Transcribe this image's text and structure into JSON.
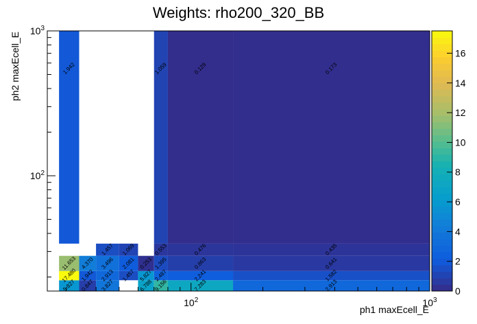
{
  "chart_data": {
    "type": "heatmap",
    "title": "Weights: rho200_320_BB",
    "xlabel": "ph1 maxEcell_E",
    "ylabel": "ph2 maxEcell_E",
    "x_scale": "log",
    "y_scale": "log",
    "xlim": [
      25,
      1000
    ],
    "ylim": [
      16,
      1000
    ],
    "x_tick_labels": [
      {
        "value": 100,
        "base": "10",
        "exp": "2"
      },
      {
        "value": 1000,
        "base": "10",
        "exp": "3"
      }
    ],
    "y_tick_labels": [
      {
        "value": 100,
        "base": "10",
        "exp": "2"
      },
      {
        "value": 1000,
        "base": "10",
        "exp": "3"
      }
    ],
    "colorbar": {
      "min": 0,
      "max": 17.5,
      "ticks": [
        "0",
        "2",
        "4",
        "6",
        "8",
        "10",
        "12",
        "14",
        "16"
      ]
    },
    "cells": [
      {
        "x": [
          28,
          34
        ],
        "y": [
          16,
          19
        ],
        "value": 5.827,
        "label": "5.827"
      },
      {
        "x": [
          34,
          40
        ],
        "y": [
          16,
          19
        ],
        "value": 0.847,
        "label": "0.847"
      },
      {
        "x": [
          40,
          50
        ],
        "y": [
          16,
          19
        ],
        "value": 3.827,
        "label": "3.827"
      },
      {
        "x": [
          60,
          70
        ],
        "y": [
          16,
          19
        ],
        "value": 6.788,
        "label": "6.788"
      },
      {
        "x": [
          70,
          80
        ],
        "y": [
          16,
          19
        ],
        "value": 9.156,
        "label": "9.156"
      },
      {
        "x": [
          80,
          150
        ],
        "y": [
          16,
          19
        ],
        "value": 7.283,
        "label": "7.283"
      },
      {
        "x": [
          150,
          1000
        ],
        "y": [
          16,
          19
        ],
        "value": 2.913,
        "label": "2.913"
      },
      {
        "x": [
          28,
          34
        ],
        "y": [
          19,
          22
        ],
        "value": 17.48,
        "label": "17.480"
      },
      {
        "x": [
          34,
          40
        ],
        "y": [
          19,
          22
        ],
        "value": 1.942,
        "label": "1.942"
      },
      {
        "x": [
          40,
          50
        ],
        "y": [
          19,
          22
        ],
        "value": 2.913,
        "label": "2.913"
      },
      {
        "x": [
          50,
          60
        ],
        "y": [
          19,
          22
        ],
        "value": 1.457,
        "label": "1.457"
      },
      {
        "x": [
          60,
          70
        ],
        "y": [
          19,
          22
        ],
        "value": 5.827,
        "label": "5.827"
      },
      {
        "x": [
          70,
          80
        ],
        "y": [
          19,
          22
        ],
        "value": 2.487,
        "label": "2.487"
      },
      {
        "x": [
          80,
          150
        ],
        "y": [
          19,
          22
        ],
        "value": 2.241,
        "label": "2.241"
      },
      {
        "x": [
          150,
          1000
        ],
        "y": [
          19,
          22
        ],
        "value": 1.582,
        "label": "1.582"
      },
      {
        "x": [
          28,
          34
        ],
        "y": [
          22,
          28
        ],
        "value": 11.653,
        "label": "11.653"
      },
      {
        "x": [
          34,
          40
        ],
        "y": [
          22,
          28
        ],
        "value": 4.37,
        "label": "4.370"
      },
      {
        "x": [
          40,
          50
        ],
        "y": [
          22,
          28
        ],
        "value": 3.496,
        "label": "3.496"
      },
      {
        "x": [
          50,
          60
        ],
        "y": [
          22,
          28
        ],
        "value": 2.081,
        "label": "2.081"
      },
      {
        "x": [
          60,
          70
        ],
        "y": [
          22,
          28
        ],
        "value": 0.253,
        "label": "0.253"
      },
      {
        "x": [
          70,
          80
        ],
        "y": [
          22,
          28
        ],
        "value": 1.395,
        "label": "1.395"
      },
      {
        "x": [
          80,
          150
        ],
        "y": [
          22,
          28
        ],
        "value": 0.863,
        "label": "0.863"
      },
      {
        "x": [
          150,
          1000
        ],
        "y": [
          22,
          28
        ],
        "value": 0.641,
        "label": "0.641"
      },
      {
        "x": [
          40,
          50
        ],
        "y": [
          28,
          34
        ],
        "value": 1.457,
        "label": "1.457"
      },
      {
        "x": [
          50,
          60
        ],
        "y": [
          28,
          34
        ],
        "value": 1.069,
        "label": "1.069"
      },
      {
        "x": [
          70,
          80
        ],
        "y": [
          28,
          34
        ],
        "value": 0.553,
        "label": "0.553"
      },
      {
        "x": [
          80,
          150
        ],
        "y": [
          28,
          34
        ],
        "value": 0.476,
        "label": "0.476"
      },
      {
        "x": [
          150,
          1000
        ],
        "y": [
          28,
          34
        ],
        "value": 0.435,
        "label": "0.435"
      },
      {
        "x": [
          28,
          34
        ],
        "y": [
          34,
          1000
        ],
        "value": 1.942,
        "label": "1.942"
      },
      {
        "x": [
          70,
          80
        ],
        "y": [
          34,
          1000
        ],
        "value": 1.059,
        "label": "1.059"
      },
      {
        "x": [
          80,
          150
        ],
        "y": [
          34,
          1000
        ],
        "value": 0.129,
        "label": "0.129"
      },
      {
        "x": [
          150,
          1000
        ],
        "y": [
          34,
          1000
        ],
        "value": 0.173,
        "label": "0.173"
      }
    ]
  }
}
